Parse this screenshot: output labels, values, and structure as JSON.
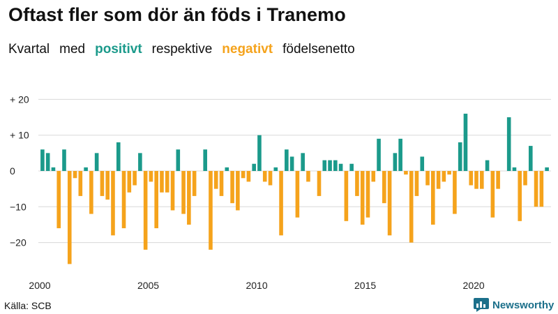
{
  "header": {
    "title": "Oftast fler som dör än föds i Tranemo",
    "subtitle_1": "Kvartal",
    "subtitle_2": "med",
    "subtitle_pos": "positivt",
    "subtitle_3": "respektive",
    "subtitle_neg": "negativt",
    "subtitle_4": "födelsenetto"
  },
  "footer": {
    "source": "Källa: SCB",
    "brand": "Newsworthy"
  },
  "colors": {
    "positive": "#1b9a8b",
    "negative": "#f5a31c",
    "grid": "#d8d8d8",
    "brand": "#1b6f8a"
  },
  "chart_data": {
    "type": "bar",
    "title": "Oftast fler som dör än föds i Tranemo",
    "subtitle": "Kvartal med positivt respektive negativt födelsenetto",
    "xlabel": "",
    "ylabel": "",
    "x_start": "2000 Q1",
    "x_ticks": [
      "2000",
      "2005",
      "2010",
      "2015",
      "2020"
    ],
    "y_ticks": [
      20,
      10,
      0,
      -10,
      -20
    ],
    "y_tick_labels": [
      "+ 20",
      "+ 10",
      "0",
      "−10",
      "−20"
    ],
    "ylim": [
      -27,
      22
    ],
    "grid": true,
    "values": [
      6,
      5,
      1,
      -16,
      6,
      -26,
      -2,
      -7,
      1,
      -12,
      5,
      -7,
      -8,
      -18,
      8,
      -16,
      -6,
      -4,
      5,
      -22,
      -3,
      -16,
      -6,
      -6,
      -11,
      6,
      -12,
      -15,
      -7,
      0,
      6,
      -22,
      -5,
      -7,
      1,
      -9,
      -11,
      -2,
      -3,
      2,
      10,
      -3,
      -4,
      1,
      -18,
      6,
      4,
      -13,
      5,
      -3,
      0,
      -7,
      3,
      3,
      3,
      2,
      -14,
      2,
      -7,
      -15,
      -13,
      -3,
      9,
      -9,
      -18,
      5,
      9,
      -1,
      -20,
      -7,
      4,
      -4,
      -15,
      -5,
      -3,
      -1,
      -12,
      8,
      16,
      -4,
      -5,
      -5,
      3,
      -13,
      -5,
      0,
      15,
      1,
      -14,
      -4,
      7,
      -10,
      -10,
      1
    ]
  }
}
